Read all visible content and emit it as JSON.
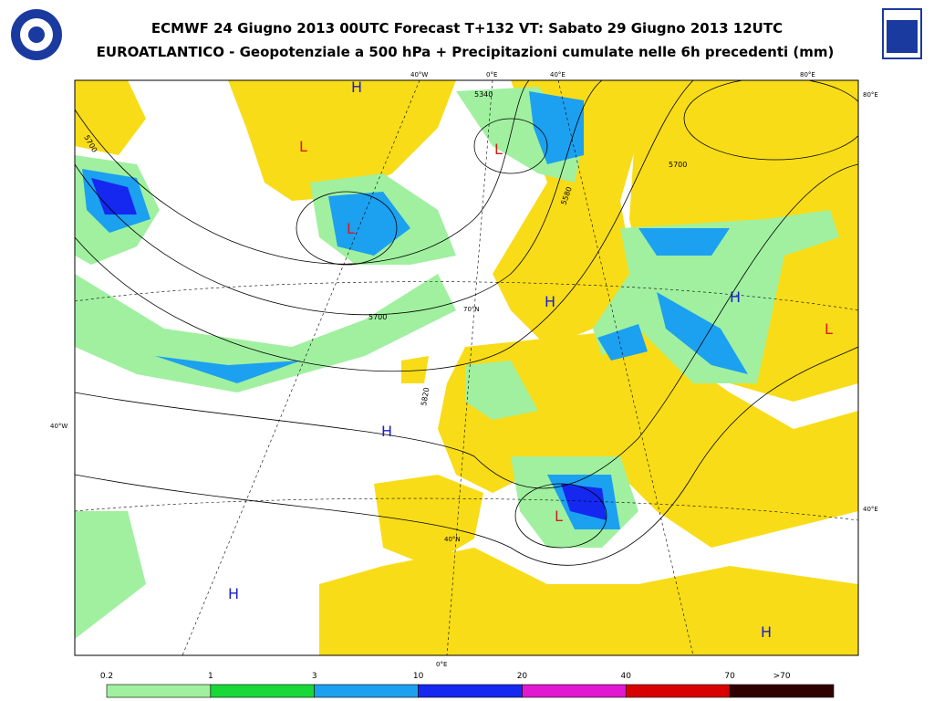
{
  "header": {
    "title": "ECMWF 24 Giugno 2013 00UTC Forecast T+132 VT: Sabato 29 Giugno 2013 12UTC",
    "subtitle": "EUROATLANTICO - Geopotenziale a 500 hPa + Precipitazioni cumulate nelle 6h precedenti (mm)"
  },
  "map": {
    "coordinate_labels": [
      "40°W",
      "0°E",
      "40°E",
      "80°E",
      "80°E",
      "40°W",
      "40°E",
      "0°E",
      "70°N",
      "40°N"
    ],
    "contour_labels": [
      "5340",
      "5580",
      "5700",
      "5700",
      "5700",
      "5820"
    ],
    "pressure_centers": [
      "H",
      "L",
      "L",
      "L",
      "H",
      "H",
      "L",
      "H",
      "L",
      "H",
      "H"
    ]
  },
  "legend": {
    "labels": [
      "0.2",
      "1",
      "3",
      "10",
      "20",
      "40",
      "70",
      ">70"
    ],
    "colors": [
      "#a0f0a0",
      "#18d838",
      "#1ca0f0",
      "#1428f0",
      "#e018d0",
      "#d80000",
      "#300000"
    ]
  }
}
